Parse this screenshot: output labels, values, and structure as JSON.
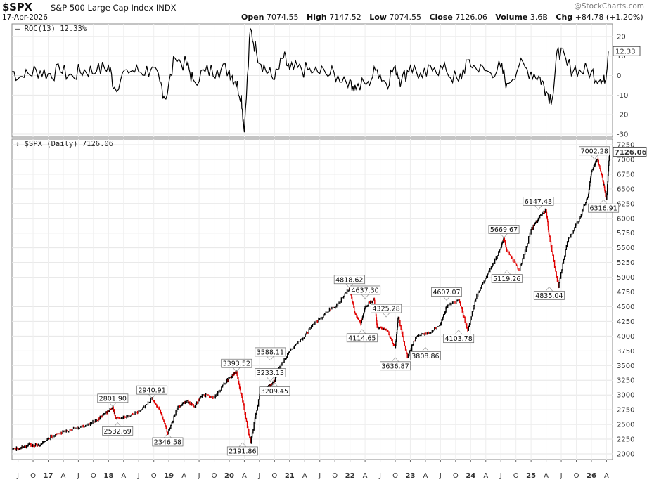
{
  "header": {
    "ticker": "$SPX",
    "name": "S&P 500 Large Cap Index",
    "exchange": "INDX",
    "date": "17-Apr-2026",
    "watermark": "@StockCharts.com",
    "open_label": "Open",
    "open": "7074.55",
    "high_label": "High",
    "high": "7147.52",
    "low_label": "Low",
    "low": "7074.55",
    "close_label": "Close",
    "close": "7126.06",
    "volume_label": "Volume",
    "volume": "3.6B",
    "chg_label": "Chg",
    "chg": "+84.78 (+1.20%)"
  },
  "chart_data": [
    {
      "type": "line",
      "title": "ROC(13) 12.33%",
      "indicator": "ROC(13)",
      "last_value": "12.33",
      "ylim": [
        -30,
        25
      ],
      "yticks": [
        20,
        10,
        0,
        -10,
        -20,
        -30
      ],
      "tick_labels": [
        "20",
        "10",
        "0",
        "-10",
        "-20",
        "-30"
      ],
      "grid": true,
      "color": "#000000",
      "series": [
        {
          "x": [
            2016.4,
            2016.6,
            2016.8,
            2017.0,
            2017.2,
            2017.4,
            2017.6,
            2017.8,
            2018.0,
            2018.1,
            2018.3,
            2018.5,
            2018.7,
            2018.85,
            2018.95,
            2019.1,
            2019.3,
            2019.4,
            2019.6,
            2019.8,
            2020.0,
            2020.1,
            2020.2,
            2020.25,
            2020.35,
            2020.45,
            2020.6,
            2020.75,
            2020.9,
            2021.0,
            2021.2,
            2021.4,
            2021.6,
            2021.8,
            2022.0,
            2022.1,
            2022.3,
            2022.45,
            2022.6,
            2022.75,
            2022.85,
            2023.0,
            2023.2,
            2023.4,
            2023.6,
            2023.8,
            2023.95,
            2024.1,
            2024.3,
            2024.5,
            2024.6,
            2024.8,
            2025.0,
            2025.15,
            2025.25,
            2025.35,
            2025.45,
            2025.6,
            2025.8,
            2026.0,
            2026.15,
            2026.22,
            2026.28
          ],
          "values": [
            2,
            -1,
            3,
            1,
            2,
            0,
            3,
            2,
            5,
            -6,
            3,
            2,
            3,
            -3,
            -12,
            9,
            5,
            -2,
            2,
            3,
            3,
            -3,
            -10,
            -29,
            24,
            12,
            3,
            -2,
            9,
            3,
            3,
            2,
            1,
            0,
            -2,
            -7,
            -3,
            3,
            -4,
            5,
            -3,
            5,
            -1,
            4,
            2,
            -3,
            8,
            3,
            2,
            4,
            -4,
            5,
            2,
            -1,
            -8,
            -12,
            14,
            5,
            3,
            2,
            -2,
            -4,
            12.33
          ]
        }
      ]
    },
    {
      "type": "line",
      "title": "$SPX (Daily) 7126.06",
      "series_name": "$SPX (Daily)",
      "last_value": "7126.06",
      "ylim": [
        2000,
        7250
      ],
      "yticks": [
        7250,
        7000,
        6750,
        6500,
        6250,
        6000,
        5750,
        5500,
        5250,
        5000,
        4750,
        4500,
        4250,
        4000,
        3750,
        3500,
        3250,
        3000,
        2750,
        2500,
        2250,
        2000
      ],
      "tick_labels": [
        "7250",
        "7000",
        "6750",
        "6500",
        "6250",
        "6000",
        "5750",
        "5500",
        "5250",
        "5000",
        "4750",
        "4500",
        "4250",
        "4000",
        "3750",
        "3500",
        "3250",
        "3000",
        "2750",
        "2500",
        "2250",
        "2000"
      ],
      "xlim": [
        2016.4,
        2026.35
      ],
      "xticks": [
        2016.5,
        2016.75,
        2017.0,
        2017.25,
        2017.5,
        2017.75,
        2018.0,
        2018.25,
        2018.5,
        2018.75,
        2019.0,
        2019.25,
        2019.5,
        2019.75,
        2020.0,
        2020.25,
        2020.5,
        2020.75,
        2021.0,
        2021.25,
        2021.5,
        2021.75,
        2022.0,
        2022.25,
        2022.5,
        2022.75,
        2023.0,
        2023.25,
        2023.5,
        2023.75,
        2024.0,
        2024.25,
        2024.5,
        2024.75,
        2025.0,
        2025.25,
        2025.5,
        2025.75,
        2026.0,
        2026.25
      ],
      "xtick_labels": [
        "J",
        "O",
        "17",
        "A",
        "J",
        "O",
        "18",
        "A",
        "J",
        "O",
        "19",
        "A",
        "J",
        "O",
        "20",
        "A",
        "J",
        "O",
        "21",
        "A",
        "J",
        "O",
        "22",
        "A",
        "J",
        "O",
        "23",
        "A",
        "J",
        "O",
        "24",
        "A",
        "J",
        "O",
        "25",
        "A",
        "J",
        "O",
        "26",
        "A"
      ],
      "grid": true,
      "colors": {
        "up": "#000000",
        "down": "#e00000"
      },
      "series": [
        {
          "x": [
            2016.4,
            2016.55,
            2016.7,
            2016.85,
            2017.0,
            2017.2,
            2017.4,
            2017.6,
            2017.8,
            2017.95,
            2018.07,
            2018.12,
            2018.3,
            2018.5,
            2018.72,
            2018.85,
            2018.98,
            2019.15,
            2019.3,
            2019.42,
            2019.55,
            2019.75,
            2019.95,
            2020.05,
            2020.12,
            2020.22,
            2020.35,
            2020.5,
            2020.65,
            2020.75,
            2020.82,
            2021.0,
            2021.2,
            2021.4,
            2021.6,
            2021.8,
            2021.99,
            2022.08,
            2022.18,
            2022.25,
            2022.4,
            2022.45,
            2022.6,
            2022.75,
            2022.8,
            2022.95,
            2023.1,
            2023.3,
            2023.5,
            2023.6,
            2023.8,
            2023.95,
            2024.1,
            2024.3,
            2024.5,
            2024.55,
            2024.6,
            2024.8,
            2025.0,
            2025.12,
            2025.25,
            2025.3,
            2025.45,
            2025.6,
            2025.8,
            2025.95,
            2026.0,
            2026.1,
            2026.2,
            2026.25,
            2026.3
          ],
          "values": [
            2080,
            2100,
            2160,
            2140,
            2270,
            2360,
            2420,
            2470,
            2570,
            2690,
            2801.9,
            2600,
            2640,
            2720,
            2940.91,
            2750,
            2346.58,
            2800,
            2900,
            2800,
            3000,
            2960,
            3230,
            3330,
            3393.52,
            2900,
            2191.86,
            3000,
            3150,
            3233.13,
            3450,
            3750,
            3950,
            4200,
            4400,
            4550,
            4818.62,
            4400,
            4200,
            4500,
            4637.3,
            4150,
            4114.65,
            3800,
            4325.28,
            3636.87,
            4000,
            4050,
            4200,
            4500,
            4607.07,
            4103.78,
            4700,
            5100,
            5500,
            5669.67,
            5450,
            5119.26,
            5800,
            6000,
            6147.43,
            5700,
            4835.04,
            5600,
            6000,
            6400,
            6800,
            7002.28,
            6600,
            6316.91,
            7126.06
          ]
        }
      ],
      "annotations": [
        {
          "label": "2801.90",
          "x": 2018.07,
          "y": 2801.9,
          "pos": "above"
        },
        {
          "label": "2532.69",
          "x": 2018.15,
          "y": 2532.69,
          "pos": "below"
        },
        {
          "label": "2940.91",
          "x": 2018.72,
          "y": 2940.91,
          "pos": "above"
        },
        {
          "label": "2346.58",
          "x": 2018.98,
          "y": 2346.58,
          "pos": "below"
        },
        {
          "label": "3393.52",
          "x": 2020.12,
          "y": 3393.52,
          "pos": "above"
        },
        {
          "label": "2191.86",
          "x": 2020.22,
          "y": 2191.86,
          "pos": "below"
        },
        {
          "label": "3233.13",
          "x": 2020.68,
          "y": 3233.13,
          "pos": "above"
        },
        {
          "label": "3588.11",
          "x": 2020.68,
          "y": 3588.11,
          "pos": "above"
        },
        {
          "label": "3209.45",
          "x": 2020.75,
          "y": 3209.45,
          "pos": "below"
        },
        {
          "label": "4818.62",
          "x": 2021.99,
          "y": 4818.62,
          "pos": "above"
        },
        {
          "label": "4637.30",
          "x": 2022.25,
          "y": 4637.3,
          "pos": "above"
        },
        {
          "label": "4114.65",
          "x": 2022.2,
          "y": 4114.65,
          "pos": "below"
        },
        {
          "label": "4325.28",
          "x": 2022.6,
          "y": 4325.28,
          "pos": "above"
        },
        {
          "label": "3636.87",
          "x": 2022.75,
          "y": 3636.87,
          "pos": "below"
        },
        {
          "label": "3808.86",
          "x": 2023.25,
          "y": 3808.86,
          "pos": "below"
        },
        {
          "label": "4607.07",
          "x": 2023.6,
          "y": 4607.07,
          "pos": "above"
        },
        {
          "label": "4103.78",
          "x": 2023.8,
          "y": 4103.78,
          "pos": "below"
        },
        {
          "label": "5669.67",
          "x": 2024.55,
          "y": 5669.67,
          "pos": "above"
        },
        {
          "label": "5119.26",
          "x": 2024.6,
          "y": 5119.26,
          "pos": "below"
        },
        {
          "label": "6147.43",
          "x": 2025.12,
          "y": 6147.43,
          "pos": "above"
        },
        {
          "label": "4835.04",
          "x": 2025.3,
          "y": 4835.04,
          "pos": "below"
        },
        {
          "label": "7002.28",
          "x": 2026.05,
          "y": 7002.28,
          "pos": "above"
        },
        {
          "label": "6316.91",
          "x": 2026.2,
          "y": 6316.91,
          "pos": "below"
        }
      ]
    }
  ]
}
